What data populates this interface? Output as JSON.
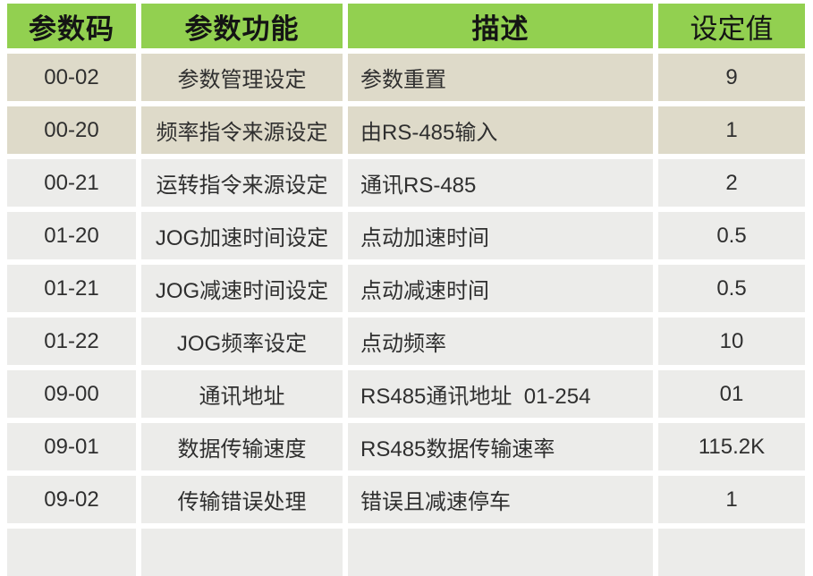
{
  "table": {
    "columns": {
      "code": "参数码",
      "function": "参数功能",
      "description": "描述",
      "value": "设定值"
    },
    "rows": [
      {
        "code": "00-02",
        "function": "参数管理设定",
        "description": "参数重置",
        "value": "9"
      },
      {
        "code": "00-20",
        "function": "频率指令来源设定",
        "description": "由RS-485输入",
        "value": "1"
      },
      {
        "code": "00-21",
        "function": "运转指令来源设定",
        "description": "通讯RS-485",
        "value": "2"
      },
      {
        "code": "01-20",
        "function": "JOG加速时间设定",
        "description": "点动加速时间",
        "value": "0.5"
      },
      {
        "code": "01-21",
        "function": "JOG减速时间设定",
        "description": "点动减速时间",
        "value": "0.5"
      },
      {
        "code": "01-22",
        "function": "JOG频率设定",
        "description": "点动频率",
        "value": "10"
      },
      {
        "code": "09-00",
        "function": "通讯地址",
        "description": "RS485通讯地址  01-254",
        "value": "01"
      },
      {
        "code": "09-01",
        "function": "数据传输速度",
        "description": "RS485数据传输速率",
        "value": "115.2K"
      },
      {
        "code": "09-02",
        "function": "传输错误处理",
        "description": "错误且减速停车",
        "value": "1"
      },
      {
        "code": "",
        "function": "",
        "description": "",
        "value": ""
      }
    ],
    "colors": {
      "header_bg": "#92d050",
      "row_beige": "#dedac9",
      "row_gray": "#ececea",
      "gutter": "#ffffff",
      "text": "#2f2f2f"
    }
  }
}
